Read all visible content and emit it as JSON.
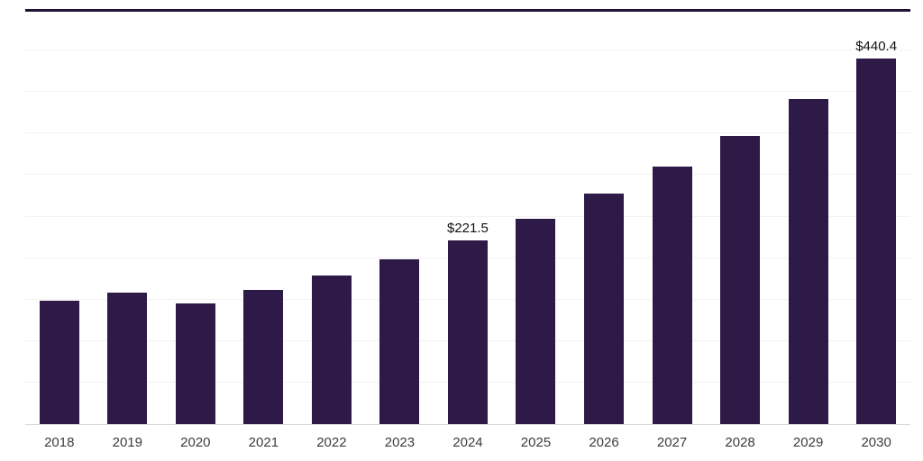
{
  "page": {
    "background": "#ffffff"
  },
  "chart_data": {
    "type": "bar",
    "title": "",
    "xlabel": "",
    "ylabel": "",
    "categories": [
      "2018",
      "2019",
      "2020",
      "2021",
      "2022",
      "2023",
      "2024",
      "2025",
      "2026",
      "2027",
      "2028",
      "2029",
      "2030"
    ],
    "values": [
      149.0,
      158.0,
      145.5,
      161.5,
      178.5,
      198.5,
      221.5,
      247.5,
      277.5,
      310.0,
      347.5,
      392.0,
      440.4
    ],
    "data_labels": [
      "",
      "",
      "",
      "",
      "",
      "",
      "$221.5",
      "",
      "",
      "",
      "",
      "",
      "$440.4"
    ],
    "ylim": [
      0,
      500
    ],
    "grid_step": 50,
    "grid": "on",
    "legend": "none",
    "bar_color": "#2e1a47",
    "top_border_color": "#1f1235",
    "axis_line_color": "#d9d9d9",
    "gridline_color": "#f2f2f2",
    "tick_label_color": "#3c3c3c",
    "data_label_color": "#111111"
  }
}
